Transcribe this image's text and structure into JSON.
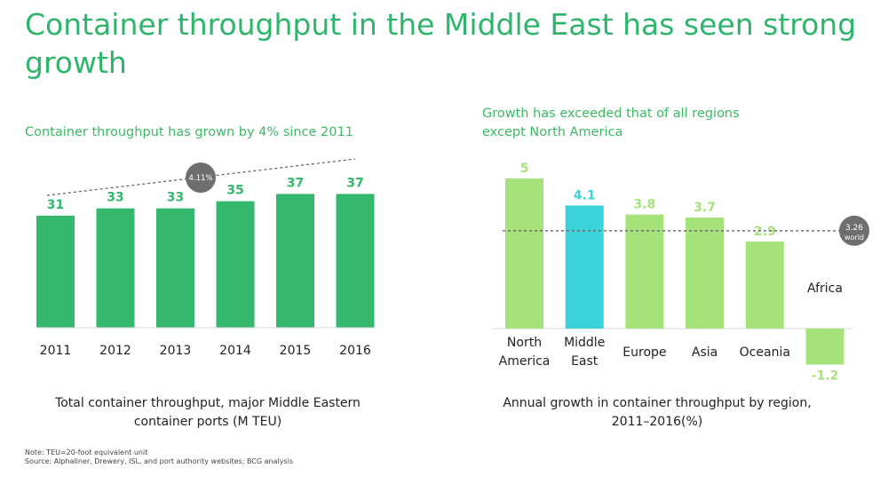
{
  "title": "Container throughput in the Middle East has seen strong growth",
  "colors": {
    "title": "#2fb56b",
    "left_bar": "#33b86e",
    "right_bar": "#a6e27a",
    "highlight_bar": "#3ad3d9",
    "badge": "#6e6e6e",
    "dashed": "#666666"
  },
  "chart_data": [
    {
      "type": "bar",
      "subtitle": "Container throughput has grown by 4% since 2011",
      "caption": "Total container throughput, major Middle Eastern container ports (M TEU)",
      "categories": [
        "2011",
        "2012",
        "2013",
        "2014",
        "2015",
        "2016"
      ],
      "values": [
        31,
        33,
        33,
        35,
        37,
        37
      ],
      "annotation": {
        "label": "4.11%"
      },
      "grid": false,
      "legend": "none"
    },
    {
      "type": "bar",
      "subtitle": "Growth has exceeded that of all regions except North America",
      "caption": "Annual growth in container throughput by region, 2011–2016(%)",
      "categories": [
        "North America",
        "Middle East",
        "Europe",
        "Asia",
        "Oceania",
        "Africa"
      ],
      "values": [
        5,
        4.1,
        3.8,
        3.7,
        2.9,
        -1.2
      ],
      "value_labels": [
        "5",
        "4.1",
        "3.8",
        "3.7",
        "2.9",
        "-1.2"
      ],
      "highlight": "Middle East",
      "reference_line": {
        "value": 3.26,
        "label": "3.26",
        "sublabel": "world"
      },
      "grid": false,
      "legend": "none"
    }
  ],
  "footnotes": {
    "note": "Note: TEU=20-foot equivalent unit",
    "source": "Source: Alphaliner, Drewery, ISL, and port authority websites; BCG analysis"
  }
}
